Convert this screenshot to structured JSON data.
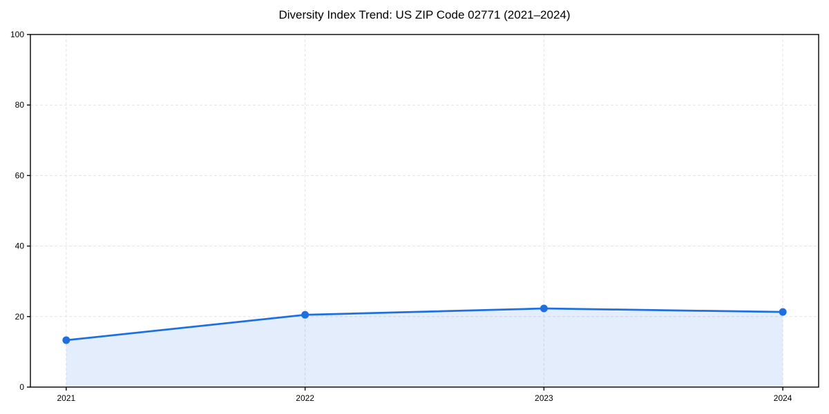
{
  "chart_data": {
    "type": "line",
    "title": "Diversity Index Trend: US ZIP Code 02771 (2021–2024)",
    "xlabel": "",
    "ylabel": "",
    "x": [
      2021,
      2022,
      2023,
      2024
    ],
    "x_tick_labels": [
      "2021",
      "2022",
      "2023",
      "2024"
    ],
    "series": [
      {
        "name": "Diversity Index",
        "values": [
          13.3,
          20.5,
          22.3,
          21.3
        ]
      }
    ],
    "area_fill_under_line": true,
    "markers": "circle",
    "ylim": [
      0,
      100
    ],
    "xlim": [
      2020.85,
      2024.15
    ],
    "y_ticks": [
      0,
      20,
      40,
      60,
      80,
      100
    ],
    "grid": true,
    "grid_style": "dashed",
    "legend_position": "none",
    "colors": {
      "line": "#1f6fe0",
      "marker": "#1f6fe0",
      "area_fill": "rgba(31,111,224,0.12)",
      "grid": "#e3e3e3",
      "axis": "#000000",
      "background": "#ffffff",
      "text": "#000000"
    }
  }
}
